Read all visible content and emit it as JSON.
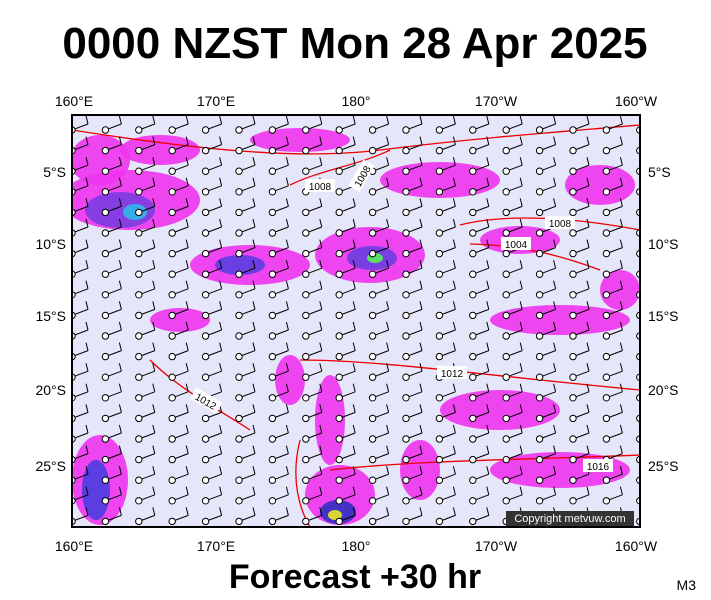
{
  "header": {
    "title": "0000 NZST Mon 28 Apr 2025"
  },
  "map": {
    "lon_labels_top": [
      "160°E",
      "170°E",
      "180°",
      "170°W",
      "160°W"
    ],
    "lon_labels_bottom": [
      "160°E",
      "170°E",
      "180°",
      "170°W",
      "160°W"
    ],
    "lat_labels_left": [
      "5°S",
      "10°S",
      "15°S",
      "20°S",
      "25°S"
    ],
    "lat_labels_right": [
      "5°S",
      "10°S",
      "15°S",
      "20°S",
      "25°S"
    ],
    "isobar_labels": [
      "1008",
      "1008",
      "1008",
      "1004",
      "1012",
      "1012",
      "1016"
    ],
    "copyright": "Copyright metvuw.com"
  },
  "footer": {
    "forecast": "Forecast +30 hr",
    "model": "M3"
  }
}
